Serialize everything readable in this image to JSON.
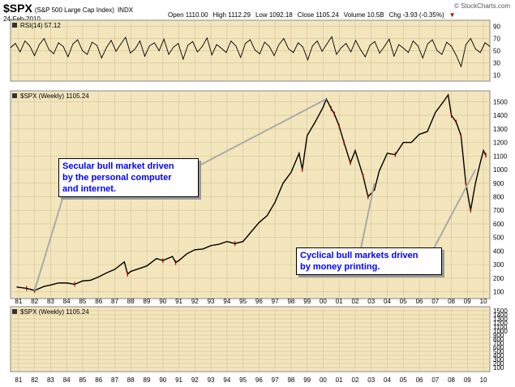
{
  "header": {
    "symbol": "$SPX",
    "description": "(S&P 500 Large Cap Index)",
    "exchange": "INDX",
    "date": "24-Feb-2010",
    "open": "Open 1110.00",
    "high": "High 1112.29",
    "low": "Low 1092.18",
    "close": "Close 1105.24",
    "volume": "Volume 10.5B",
    "change": "Chg -3.93 (-0.35%)",
    "change_arrow": "▼",
    "brand": "© StockCharts.com"
  },
  "colors": {
    "panel_bg": "#f3e6bd",
    "grid": "#d8c89c",
    "price": "#000000",
    "down": "#d00000",
    "text_blue": "#0000ff"
  },
  "annotations": {
    "secular": [
      "Secular bull market driven",
      "by the personal computer",
      "and internet."
    ],
    "cyclical": [
      "Cyclical bull markets driven",
      "by money printing."
    ]
  },
  "chart_data": [
    {
      "type": "line",
      "title": "RSI(14) 57.12",
      "series": [
        {
          "name": "RSI(14)",
          "values": [
            55,
            62,
            48,
            66,
            58,
            42,
            60,
            70,
            52,
            45,
            63,
            57,
            40,
            61,
            68,
            50,
            44,
            64,
            59,
            38,
            55,
            67,
            49,
            61,
            72,
            46,
            53,
            66,
            41,
            58,
            63,
            50,
            69,
            44,
            56,
            62,
            36,
            59,
            65,
            48,
            57,
            71,
            43,
            60,
            54,
            47,
            66,
            58,
            39,
            62,
            68,
            51,
            45,
            64,
            57,
            42,
            60,
            70,
            53,
            47,
            63,
            56,
            35,
            58,
            66,
            49,
            61,
            73,
            44,
            55,
            62,
            48,
            67,
            52,
            40,
            59,
            65,
            46,
            57,
            69,
            41,
            60,
            54,
            47,
            66,
            58,
            38,
            61,
            68,
            50,
            44,
            64,
            57,
            42,
            24,
            60,
            70,
            53,
            47,
            63,
            57
          ]
        }
      ],
      "yticks": [
        10,
        30,
        50,
        70,
        90
      ],
      "ylim": [
        0,
        100
      ],
      "grid": true
    },
    {
      "type": "line",
      "title": "$SPX (Weekly) 1105.24",
      "categories": [
        "81",
        "82",
        "83",
        "84",
        "85",
        "86",
        "87",
        "88",
        "89",
        "90",
        "91",
        "92",
        "93",
        "94",
        "95",
        "96",
        "97",
        "98",
        "99",
        "00",
        "01",
        "02",
        "03",
        "04",
        "05",
        "06",
        "07",
        "08",
        "09",
        "10"
      ],
      "x": [
        1980.9,
        1981.5,
        1982.0,
        1982.6,
        1983.0,
        1983.5,
        1984.0,
        1984.5,
        1985.0,
        1985.5,
        1986.0,
        1986.5,
        1987.0,
        1987.6,
        1987.8,
        1988.0,
        1988.5,
        1989.0,
        1989.6,
        1990.0,
        1990.6,
        1990.8,
        1991.0,
        1991.5,
        1992.0,
        1992.5,
        1993.0,
        1993.5,
        1994.0,
        1994.5,
        1995.0,
        1995.5,
        1996.0,
        1996.5,
        1997.0,
        1997.5,
        1998.0,
        1998.5,
        1998.7,
        1999.0,
        1999.5,
        2000.0,
        2000.2,
        2000.5,
        2000.7,
        2001.0,
        2001.3,
        2001.7,
        2002.0,
        2002.5,
        2002.8,
        2003.2,
        2003.5,
        2004.0,
        2004.5,
        2005.0,
        2005.5,
        2006.0,
        2006.5,
        2007.0,
        2007.5,
        2007.8,
        2008.0,
        2008.3,
        2008.6,
        2008.9,
        2009.2,
        2009.5,
        2009.8,
        2010.0,
        2010.15
      ],
      "values": [
        135,
        125,
        110,
        140,
        150,
        165,
        165,
        155,
        180,
        185,
        210,
        240,
        265,
        320,
        230,
        250,
        270,
        290,
        345,
        330,
        360,
        315,
        330,
        380,
        410,
        415,
        440,
        450,
        470,
        455,
        470,
        540,
        610,
        660,
        760,
        900,
        980,
        1120,
        1000,
        1250,
        1350,
        1460,
        1520,
        1450,
        1410,
        1320,
        1200,
        1050,
        1140,
        950,
        800,
        850,
        990,
        1120,
        1110,
        1200,
        1200,
        1260,
        1280,
        1420,
        1500,
        1550,
        1400,
        1350,
        1250,
        900,
        700,
        900,
        1050,
        1140,
        1105
      ],
      "yticks": [
        100,
        200,
        300,
        400,
        500,
        600,
        700,
        800,
        900,
        1000,
        1100,
        1200,
        1300,
        1400,
        1500
      ],
      "xlim": [
        1980.5,
        2010.4
      ],
      "ylim": [
        50,
        1580
      ],
      "grid": true
    },
    {
      "type": "line",
      "title": "$SPX (Weekly) 1105.24",
      "series": [],
      "yticks": [
        100,
        200,
        300,
        400,
        500,
        600,
        700,
        800,
        900,
        1000,
        1100,
        1200,
        1300,
        1400,
        1500
      ],
      "ylim": [
        0,
        1600
      ]
    }
  ]
}
